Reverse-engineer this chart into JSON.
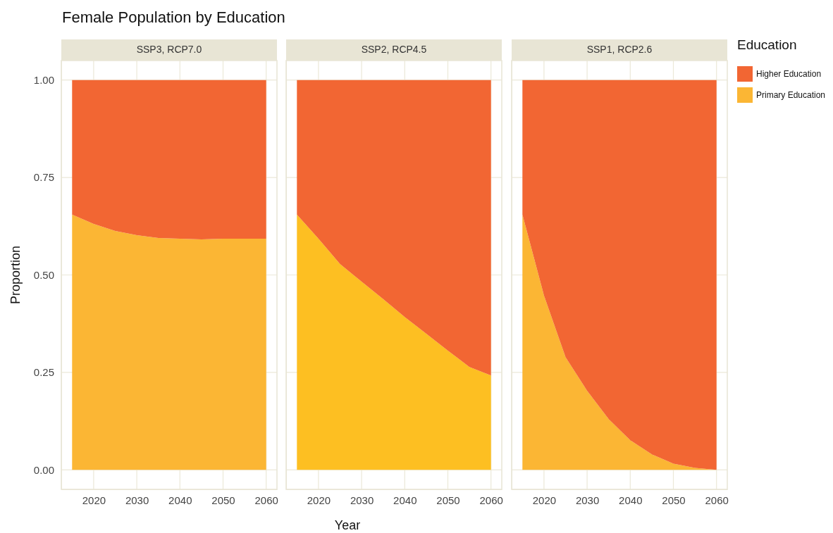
{
  "chart_data": [
    {
      "type": "area",
      "title": "Female Population by Education",
      "subtitle": "SSP3, RCP7.0",
      "ylabel": "Proportion",
      "stacked": true,
      "grid": true,
      "legend": false,
      "x": [
        2015,
        2020,
        2025,
        2030,
        2035,
        2040,
        2045,
        2050,
        2055,
        2060
      ],
      "xlim": [
        2012.5,
        2062.5
      ],
      "xticks": [
        2020,
        2030,
        2040,
        2050,
        2060
      ],
      "ylim": [
        -0.05,
        1.05
      ],
      "yticks": [
        {
          "value": 0,
          "label": "0.00"
        },
        {
          "value": 0.25,
          "label": "0.25"
        },
        {
          "value": 0.5,
          "label": "0.50"
        },
        {
          "value": 0.75,
          "label": "0.75"
        },
        {
          "value": 1,
          "label": "1.00"
        }
      ],
      "series": [
        {
          "color": "#fbb634",
          "values": [
            0.655,
            0.631,
            0.613,
            0.602,
            0.595,
            0.593,
            0.591,
            0.593,
            0.593,
            0.593
          ]
        },
        {
          "color": "#f26633",
          "values": [
            0.345,
            0.369,
            0.387,
            0.398,
            0.405,
            0.407,
            0.409,
            0.407,
            0.407,
            0.407
          ]
        }
      ]
    },
    {
      "type": "area",
      "subtitle": "SSP2, RCP4.5",
      "xlabel": "Year",
      "stacked": true,
      "grid": true,
      "legend": false,
      "tick_labels": "x",
      "x": [
        2015,
        2020,
        2025,
        2030,
        2035,
        2040,
        2045,
        2050,
        2055,
        2060
      ],
      "xlim": [
        2012.5,
        2062.5
      ],
      "xticks": [
        2020,
        2030,
        2040,
        2050,
        2060
      ],
      "ylim": [
        -0.05,
        1.05
      ],
      "yticks": [
        {
          "value": 0,
          "label": null
        },
        {
          "value": 0.25,
          "label": null
        },
        {
          "value": 0.5,
          "label": null
        },
        {
          "value": 0.75,
          "label": null
        },
        {
          "value": 1,
          "label": null
        }
      ],
      "series": [
        {
          "color": "#fdbf22",
          "values": [
            0.655,
            0.593,
            0.528,
            0.483,
            0.438,
            0.392,
            0.349,
            0.306,
            0.264,
            0.242
          ]
        },
        {
          "color": "#f26633",
          "values": [
            0.345,
            0.407,
            0.472,
            0.517,
            0.562,
            0.608,
            0.651,
            0.694,
            0.736,
            0.758
          ]
        }
      ]
    },
    {
      "type": "area",
      "subtitle": "SSP1, RCP2.6",
      "legend_title": "Education",
      "stacked": true,
      "grid": true,
      "legend": "right",
      "tick_labels": "x",
      "x": [
        2015,
        2020,
        2025,
        2030,
        2035,
        2040,
        2045,
        2050,
        2055,
        2060
      ],
      "xlim": [
        2012.5,
        2062.5
      ],
      "xticks": [
        2020,
        2030,
        2040,
        2050,
        2060
      ],
      "ylim": [
        -0.05,
        1.05
      ],
      "yticks": [
        {
          "value": 0,
          "label": null
        },
        {
          "value": 0.25,
          "label": null
        },
        {
          "value": 0.5,
          "label": null
        },
        {
          "value": 0.75,
          "label": null
        },
        {
          "value": 1,
          "label": null
        }
      ],
      "series": [
        {
          "name": "Primary Education",
          "color": "#fbb634",
          "values": [
            0.655,
            0.447,
            0.289,
            0.203,
            0.13,
            0.076,
            0.04,
            0.016,
            0.005,
            0.0
          ]
        },
        {
          "name": "Higher Education",
          "color": "#f26633",
          "values": [
            0.345,
            0.553,
            0.711,
            0.797,
            0.87,
            0.924,
            0.96,
            0.984,
            0.995,
            1.0
          ]
        }
      ]
    }
  ]
}
